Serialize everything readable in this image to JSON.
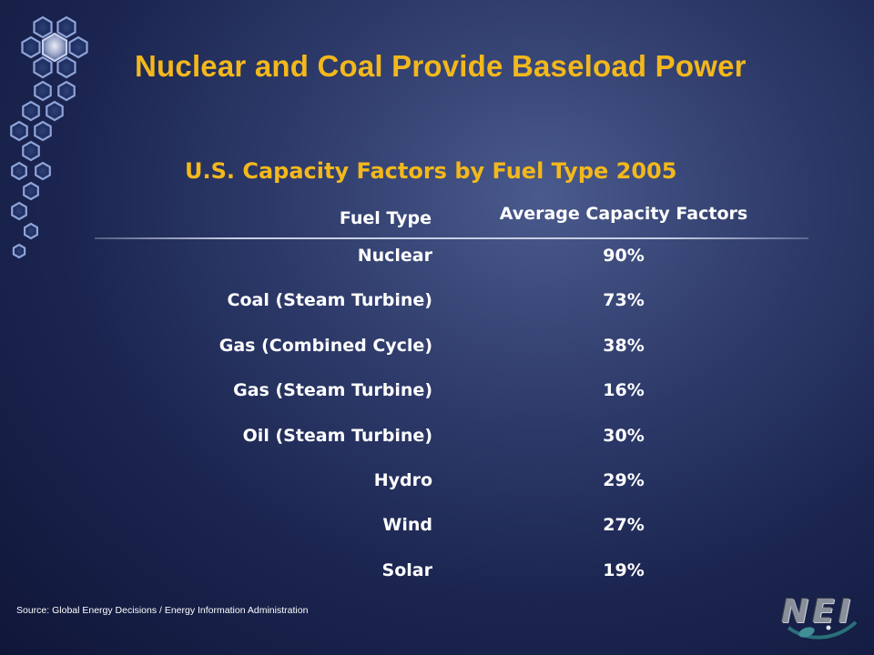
{
  "slide": {
    "title": "Nuclear and Coal Provide Baseload Power",
    "subtitle": "U.S. Capacity Factors by Fuel Type 2005",
    "source": "Source: Global Energy Decisions / Energy Information Administration",
    "logo_text": "NEI"
  },
  "table": {
    "headers": {
      "fuel": "Fuel Type",
      "factor": "Average Capacity Factors"
    },
    "rows": [
      {
        "fuel": "Nuclear",
        "factor": "90%"
      },
      {
        "fuel": "Coal (Steam Turbine)",
        "factor": "73%"
      },
      {
        "fuel": "Gas (Combined Cycle)",
        "factor": "38%"
      },
      {
        "fuel": "Gas (Steam Turbine)",
        "factor": "16%"
      },
      {
        "fuel": "Oil (Steam Turbine)",
        "factor": "30%"
      },
      {
        "fuel": "Hydro",
        "factor": "29%"
      },
      {
        "fuel": "Wind",
        "factor": "27%"
      },
      {
        "fuel": "Solar",
        "factor": "19%"
      }
    ]
  },
  "colors": {
    "title": "#f3b81c",
    "text": "#ffffff",
    "background": "#1b2550"
  }
}
